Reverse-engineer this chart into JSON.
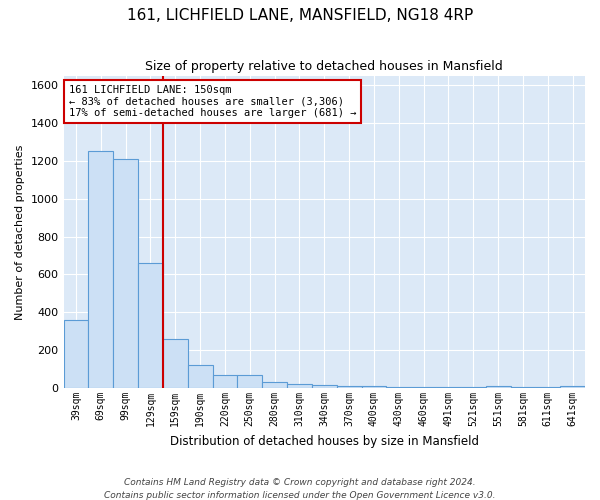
{
  "title": "161, LICHFIELD LANE, MANSFIELD, NG18 4RP",
  "subtitle": "Size of property relative to detached houses in Mansfield",
  "xlabel": "Distribution of detached houses by size in Mansfield",
  "ylabel": "Number of detached properties",
  "categories": [
    "39sqm",
    "69sqm",
    "99sqm",
    "129sqm",
    "159sqm",
    "190sqm",
    "220sqm",
    "250sqm",
    "280sqm",
    "310sqm",
    "340sqm",
    "370sqm",
    "400sqm",
    "430sqm",
    "460sqm",
    "491sqm",
    "521sqm",
    "551sqm",
    "581sqm",
    "611sqm",
    "641sqm"
  ],
  "values": [
    360,
    1250,
    1210,
    660,
    260,
    120,
    70,
    70,
    35,
    20,
    15,
    10,
    10,
    8,
    8,
    5,
    5,
    10,
    5,
    5,
    10
  ],
  "bar_color": "#cce0f5",
  "bar_edge_color": "#5b9bd5",
  "red_line_index": 3.5,
  "red_line_color": "#cc0000",
  "annotation_line1": "161 LICHFIELD LANE: 150sqm",
  "annotation_line2": "← 83% of detached houses are smaller (3,306)",
  "annotation_line3": "17% of semi-detached houses are larger (681) →",
  "annotation_box_color": "white",
  "annotation_box_edge": "#cc0000",
  "ylim": [
    0,
    1650
  ],
  "background_color": "#dce9f7",
  "grid_color": "white",
  "footer": "Contains HM Land Registry data © Crown copyright and database right 2024.\nContains public sector information licensed under the Open Government Licence v3.0."
}
